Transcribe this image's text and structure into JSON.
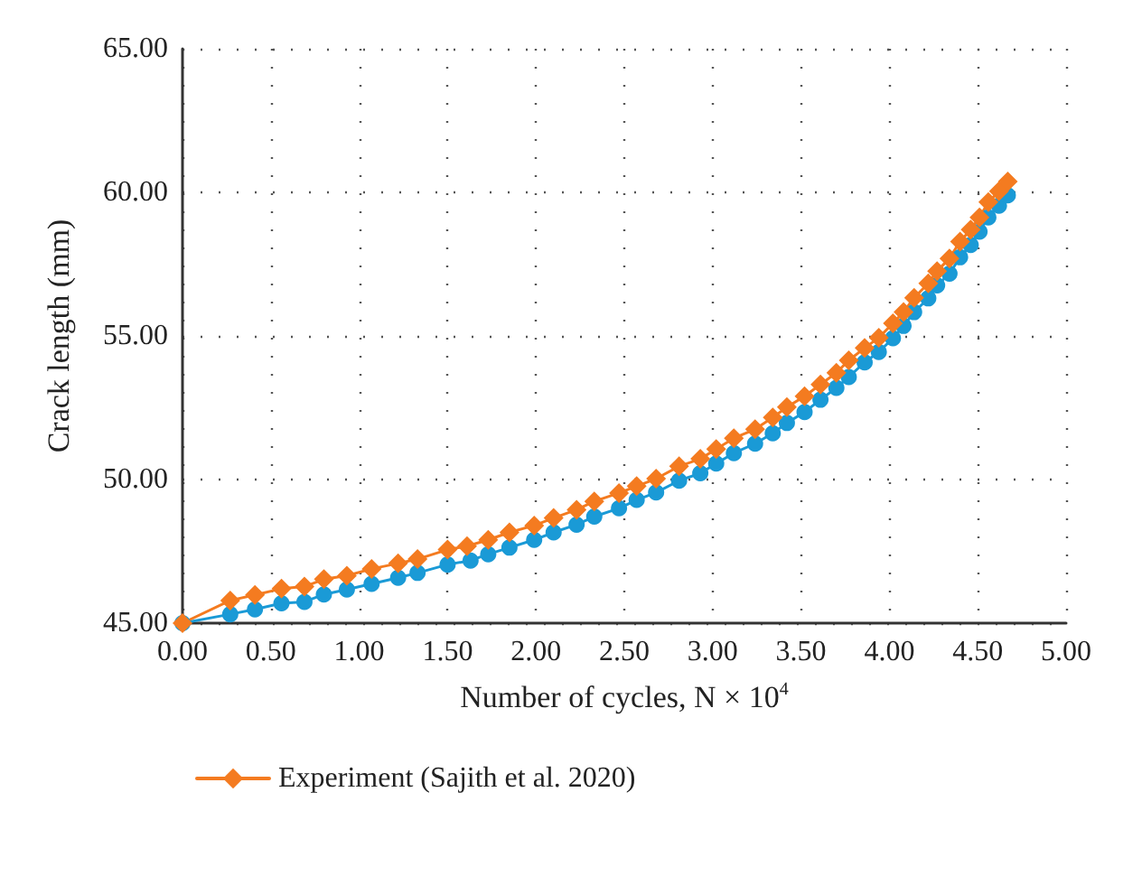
{
  "chart_data": {
    "type": "line",
    "xlabel": "Number of cycles, N × 10$^{4}$",
    "ylabel": "Crack length (mm)",
    "xlim": [
      0,
      5
    ],
    "xticks": [
      {
        "value": 0,
        "label": "0.00"
      },
      {
        "value": 0.5,
        "label": "0.50"
      },
      {
        "value": 1,
        "label": "1.00"
      },
      {
        "value": 1.5,
        "label": "1.50"
      },
      {
        "value": 2,
        "label": "2.00"
      },
      {
        "value": 2.5,
        "label": "2.50"
      },
      {
        "value": 3,
        "label": "3.00"
      },
      {
        "value": 3.5,
        "label": "3.50"
      },
      {
        "value": 4,
        "label": "4.00"
      },
      {
        "value": 4.5,
        "label": "4.50"
      },
      {
        "value": 5,
        "label": "5.00"
      }
    ],
    "ylim": [
      45,
      65
    ],
    "yticks": [
      {
        "value": 45,
        "label": "45.00"
      },
      {
        "value": 50,
        "label": "50.00"
      },
      {
        "value": 55,
        "label": "55.00"
      },
      {
        "value": 60,
        "label": "60.00"
      },
      {
        "value": 65,
        "label": "65.00"
      }
    ],
    "grid": true,
    "legend": "bottom",
    "series": [
      {
        "color": "#1a9ad6",
        "marker": "circle",
        "x": [
          0,
          0.27,
          0.41,
          0.56,
          0.69,
          0.8,
          0.93,
          1.07,
          1.22,
          1.33,
          1.5,
          1.63,
          1.73,
          1.85,
          1.99,
          2.1,
          2.23,
          2.33,
          2.47,
          2.57,
          2.68,
          2.81,
          2.93,
          3.02,
          3.12,
          3.24,
          3.34,
          3.42,
          3.52,
          3.61,
          3.7,
          3.77,
          3.86,
          3.94,
          4.02,
          4.08,
          4.14,
          4.22,
          4.27,
          4.34,
          4.4,
          4.46,
          4.51,
          4.56,
          4.62,
          4.67
        ],
        "values": [
          45,
          45.31,
          45.48,
          45.69,
          45.74,
          46,
          46.17,
          46.37,
          46.58,
          46.75,
          47.04,
          47.18,
          47.4,
          47.63,
          47.9,
          48.16,
          48.43,
          48.71,
          49,
          49.29,
          49.55,
          49.96,
          50.22,
          50.56,
          50.92,
          51.25,
          51.61,
          51.97,
          52.35,
          52.78,
          53.19,
          53.57,
          54.08,
          54.44,
          54.92,
          55.35,
          55.83,
          56.31,
          56.76,
          57.17,
          57.74,
          58.17,
          58.63,
          59.13,
          59.54,
          59.9
        ]
      },
      {
        "name": "Experiment (Sajith et al. 2020)",
        "color": "#f47b20",
        "marker": "diamond",
        "x": [
          0,
          0.27,
          0.41,
          0.56,
          0.69,
          0.8,
          0.93,
          1.07,
          1.22,
          1.33,
          1.5,
          1.61,
          1.73,
          1.85,
          1.99,
          2.1,
          2.23,
          2.33,
          2.47,
          2.57,
          2.68,
          2.81,
          2.93,
          3.02,
          3.12,
          3.24,
          3.34,
          3.42,
          3.52,
          3.61,
          3.7,
          3.77,
          3.86,
          3.94,
          4.02,
          4.08,
          4.14,
          4.22,
          4.27,
          4.34,
          4.4,
          4.46,
          4.51,
          4.56,
          4.62,
          4.67
        ],
        "values": [
          45,
          45.79,
          45.98,
          46.2,
          46.27,
          46.53,
          46.65,
          46.89,
          47.08,
          47.23,
          47.56,
          47.68,
          47.9,
          48.16,
          48.4,
          48.66,
          48.95,
          49.24,
          49.53,
          49.77,
          50.03,
          50.46,
          50.72,
          51.06,
          51.44,
          51.75,
          52.16,
          52.52,
          52.9,
          53.31,
          53.72,
          54.15,
          54.58,
          54.94,
          55.44,
          55.83,
          56.33,
          56.83,
          57.26,
          57.7,
          58.29,
          58.7,
          59.13,
          59.66,
          60.04,
          60.38
        ]
      }
    ]
  }
}
